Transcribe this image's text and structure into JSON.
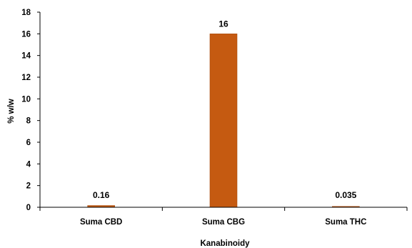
{
  "chart_data": {
    "type": "bar",
    "categories": [
      "Suma CBD",
      "Suma CBG",
      "Suma THC"
    ],
    "values": [
      0.16,
      16,
      0.035
    ],
    "data_labels": [
      "0.16",
      "16",
      "0.035"
    ],
    "title": "",
    "xlabel": "Kanabinoidy",
    "ylabel": "% w/w",
    "ylim": [
      0,
      18
    ],
    "yticks": [
      0,
      2,
      4,
      6,
      8,
      10,
      12,
      14,
      16,
      18
    ],
    "ytick_labels": [
      "0",
      "2",
      "4",
      "6",
      "8",
      "10",
      "12",
      "14",
      "16",
      "18"
    ],
    "grid": false,
    "legend": "none",
    "colors": {
      "bar": "#C55A11",
      "bar_edge": "#A84B0C",
      "axis": "#000000"
    }
  }
}
